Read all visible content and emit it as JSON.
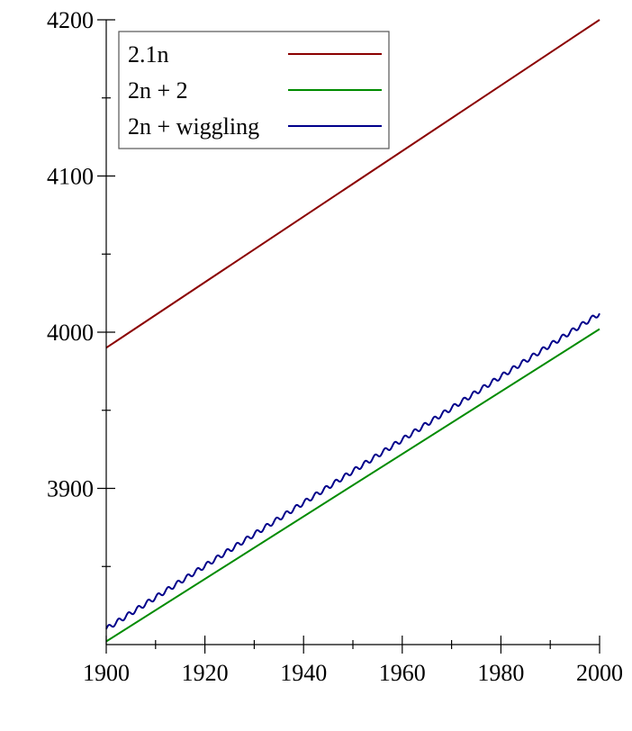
{
  "chart_data": {
    "type": "line",
    "title": "",
    "xlabel": "",
    "ylabel": "",
    "xlim": [
      1900,
      2000
    ],
    "ylim": [
      3800,
      4200
    ],
    "x_ticks": [
      {
        "value": 1900,
        "label": "1900"
      },
      {
        "value": 1920,
        "label": "1920"
      },
      {
        "value": 1940,
        "label": "1940"
      },
      {
        "value": 1960,
        "label": "1960"
      },
      {
        "value": 1980,
        "label": "1980"
      },
      {
        "value": 2000,
        "label": "2000"
      }
    ],
    "x_minor_ticks": [
      1910,
      1930,
      1950,
      1970,
      1990
    ],
    "y_ticks": [
      {
        "value": 3900,
        "label": "3900"
      },
      {
        "value": 4000,
        "label": "4000"
      },
      {
        "value": 4100,
        "label": "4100"
      },
      {
        "value": 4200,
        "label": "4200"
      }
    ],
    "y_minor_ticks": [
      3850,
      3950,
      4050,
      4150
    ],
    "grid": false,
    "legend_position": "top-left",
    "series": [
      {
        "name": "2.1n",
        "color": "#8b0000",
        "x": [
          1900,
          2000
        ],
        "y": [
          3990,
          4200
        ]
      },
      {
        "name": "2n + 2",
        "color": "#008b00",
        "x": [
          1900,
          2000
        ],
        "y": [
          3802,
          4002
        ]
      },
      {
        "name": "2n + wiggling",
        "color": "#00008b",
        "x_range": [
          1900,
          2000
        ],
        "y_start": 3810,
        "y_end": 4012,
        "wiggle_amplitude": 1.5,
        "wiggle_period": 2
      }
    ]
  }
}
